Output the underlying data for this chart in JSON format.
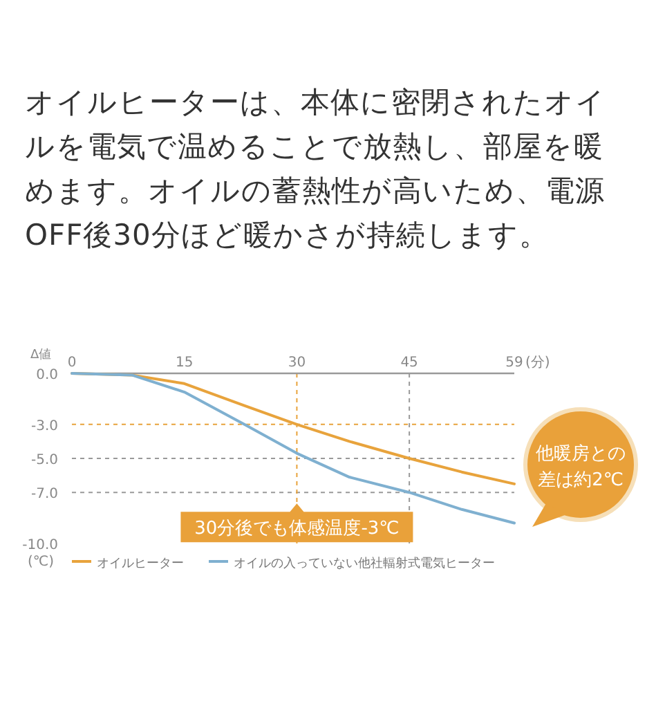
{
  "chart_data": {
    "type": "line",
    "title": "オイルヒーターは、本体に密閉されたオイルを電気で温めることで放熱し、部屋を暖めます。オイルの蓄熱性が高いため、電源OFF後30分ほど暖かさが持続します。",
    "ylabel": "Δ値",
    "y2label": "(℃)",
    "xlabel": "(分)",
    "xlim": [
      0,
      59
    ],
    "xticks": [
      0,
      15,
      30,
      45,
      59
    ],
    "ylim": [
      -10,
      0
    ],
    "yticks": [
      {
        "value": 0,
        "label": "0.0"
      },
      {
        "value": -3,
        "label": "-3.0"
      },
      {
        "value": -5,
        "label": "-5.0"
      },
      {
        "value": -7,
        "label": "-7.0"
      },
      {
        "value": -10,
        "label": "-10.0"
      }
    ],
    "series": [
      {
        "name": "オイルヒーター",
        "color": "#e8a33c",
        "x": [
          0,
          8,
          15,
          23,
          30,
          37,
          45,
          52,
          59
        ],
        "values": [
          0,
          -0.1,
          -0.6,
          -1.9,
          -3.0,
          -4.0,
          -5.0,
          -5.8,
          -6.5
        ]
      },
      {
        "name": "オイルの入っていない他社輻射式電気ヒーター",
        "color": "#7fb0d0",
        "x": [
          0,
          8,
          15,
          23,
          30,
          37,
          45,
          52,
          59
        ],
        "values": [
          0,
          -0.1,
          -1.1,
          -3.0,
          -4.7,
          -6.1,
          -7.0,
          -8.0,
          -8.8
        ]
      }
    ],
    "ref_lines": [
      {
        "axis": "y",
        "value": -3,
        "color": "#e8a33c",
        "line_style": "dashed"
      },
      {
        "axis": "y",
        "value": -5,
        "color": "#999999",
        "line_style": "dashed"
      },
      {
        "axis": "y",
        "value": -7,
        "color": "#999999",
        "line_style": "dashed"
      },
      {
        "axis": "x",
        "value": 30,
        "color": "#e8a33c",
        "line_style": "dashed"
      },
      {
        "axis": "x",
        "value": 45,
        "color": "#999999",
        "line_style": "dashed"
      }
    ],
    "annotations": [
      {
        "text": "30分後でも体感温度-3℃",
        "x": 30,
        "y": -7
      },
      "他暖房との差は約2℃"
    ],
    "grid": false,
    "legend": "bottom",
    "marker": "none",
    "line_style": "solid"
  }
}
